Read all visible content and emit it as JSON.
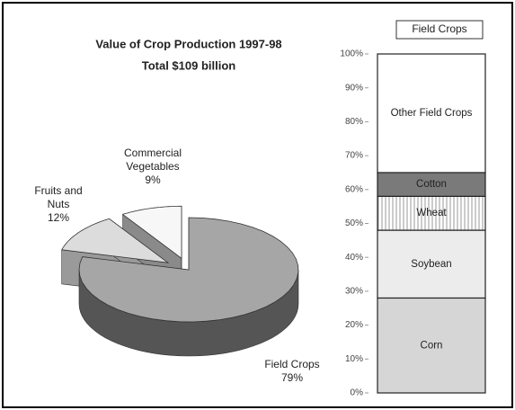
{
  "chart_data": [
    {
      "type": "pie3d",
      "title": "Value of Crop Production 1997-98",
      "subtitle": "Total  $109 billion",
      "categories": [
        "Field Crops",
        "Fruits and Nuts",
        "Commercial Vegetables"
      ],
      "values": [
        79,
        12,
        9
      ],
      "value_labels": [
        "79%",
        "12%",
        "9%"
      ],
      "colors": [
        "#a6a6a6",
        "#dcdcdc",
        "#f7f7f7"
      ],
      "side_colors": [
        "#555555",
        "#9a9a9a",
        "#8a8a8a"
      ]
    },
    {
      "type": "stacked_bar",
      "categories": [
        "Field Crops"
      ],
      "series": [
        {
          "name": "Corn",
          "color": "#d6d6d6",
          "values": [
            28
          ]
        },
        {
          "name": "Soybean",
          "color": "#ececec",
          "values": [
            20
          ]
        },
        {
          "name": "Wheat",
          "color": "#ffffff",
          "pattern": "vertical-lines",
          "values": [
            10
          ]
        },
        {
          "name": "Cotton",
          "color": "#7a7a7a",
          "values": [
            7
          ]
        },
        {
          "name": "Other Field Crops",
          "color": "#ffffff",
          "values": [
            35
          ]
        }
      ],
      "ylim": [
        0,
        100
      ],
      "yticks": [
        {
          "value": 0,
          "label": "0%"
        },
        {
          "value": 10,
          "label": "10%"
        },
        {
          "value": 20,
          "label": "20%"
        },
        {
          "value": 30,
          "label": "30%"
        },
        {
          "value": 40,
          "label": "40%"
        },
        {
          "value": 50,
          "label": "50%"
        },
        {
          "value": 60,
          "label": "60%"
        },
        {
          "value": 70,
          "label": "70%"
        },
        {
          "value": 80,
          "label": "80%"
        },
        {
          "value": 90,
          "label": "90%"
        },
        {
          "value": 100,
          "label": "100%"
        }
      ]
    }
  ]
}
